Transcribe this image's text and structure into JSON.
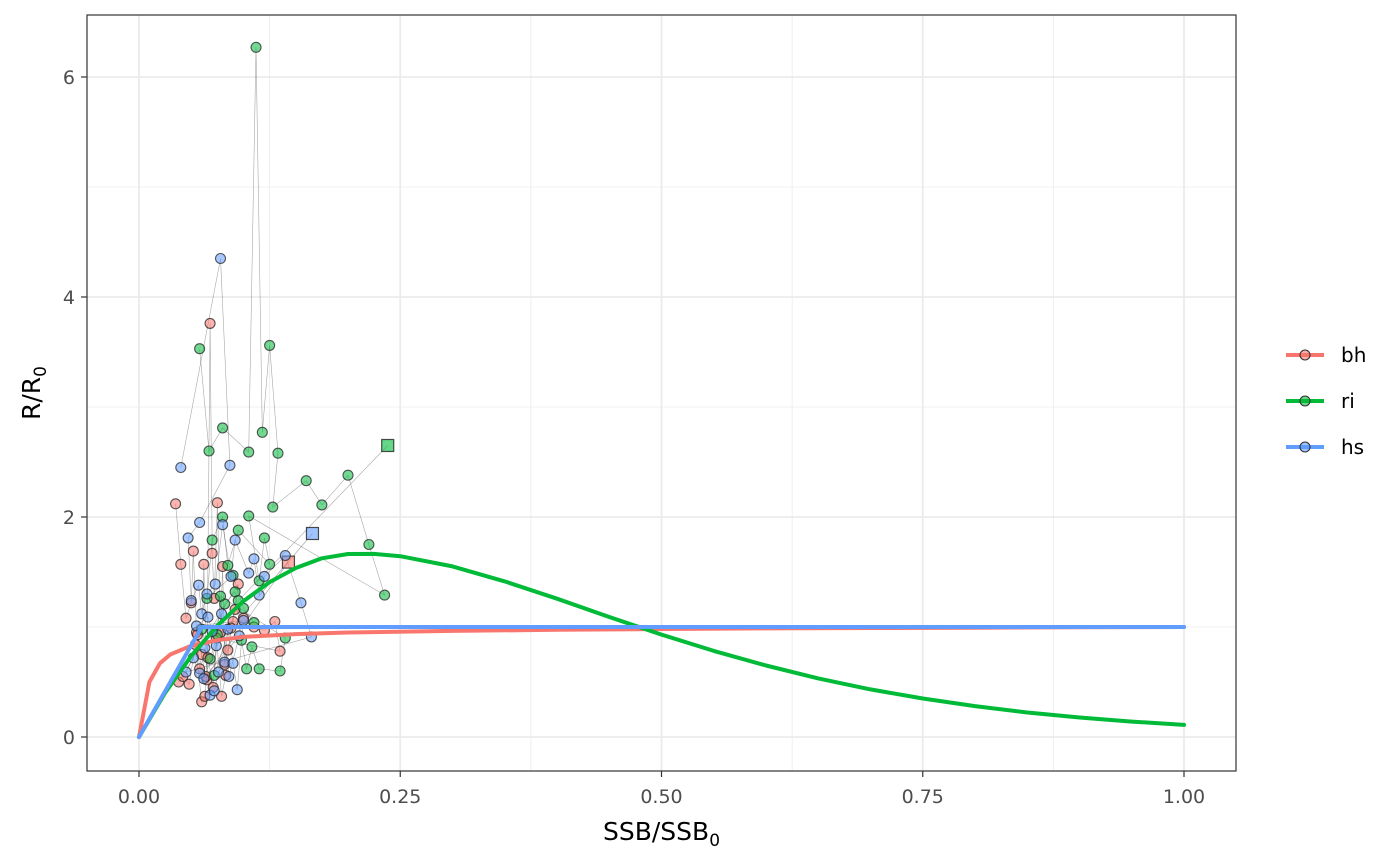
{
  "chart_data": {
    "type": "scatter",
    "xlabel": {
      "main": "SSB/SSB",
      "sub": "0"
    },
    "ylabel": {
      "main": "R/R",
      "sub": "0"
    },
    "xlim": [
      -0.1,
      1.1
    ],
    "ylim": [
      -0.3,
      6.55
    ],
    "x_ticks": [
      0.0,
      0.25,
      0.5,
      0.75,
      1.0
    ],
    "x_tick_labels": [
      "0.00",
      "0.25",
      "0.50",
      "0.75",
      "1.00"
    ],
    "y_ticks": [
      0,
      2,
      4,
      6
    ],
    "y_tick_labels": [
      "0",
      "2",
      "4",
      "6"
    ],
    "grid": true,
    "legend_position": "right",
    "legend": [
      {
        "key": "bh",
        "label": "bh",
        "color": "#F8766D"
      },
      {
        "key": "ri",
        "label": "ri",
        "color": "#00BA38"
      },
      {
        "key": "hs",
        "label": "hs",
        "color": "#619CFF"
      }
    ],
    "series": [
      {
        "key": "bh",
        "color": "#F8766D",
        "curve": {
          "x": [
            0,
            0.01,
            0.02,
            0.03,
            0.05,
            0.075,
            0.1,
            0.15,
            0.2,
            0.3,
            0.4,
            0.5,
            0.6,
            0.7,
            0.8,
            0.9,
            1.0
          ],
          "y": [
            0,
            0.5,
            0.67,
            0.75,
            0.83,
            0.88,
            0.91,
            0.935,
            0.95,
            0.965,
            0.975,
            0.982,
            0.987,
            0.991,
            0.994,
            0.997,
            1.0
          ]
        },
        "points": [
          [
            0.035,
            2.12
          ],
          [
            0.04,
            1.57
          ],
          [
            0.045,
            1.08
          ],
          [
            0.05,
            1.22
          ],
          [
            0.052,
            1.69
          ],
          [
            0.055,
            0.95
          ],
          [
            0.058,
            0.62
          ],
          [
            0.06,
            0.75
          ],
          [
            0.062,
            1.57
          ],
          [
            0.065,
            0.52
          ],
          [
            0.068,
            3.76
          ],
          [
            0.07,
            1.67
          ],
          [
            0.072,
            1.26
          ],
          [
            0.075,
            2.13
          ],
          [
            0.078,
            0.95
          ],
          [
            0.08,
            1.55
          ],
          [
            0.082,
            0.66
          ],
          [
            0.085,
            0.79
          ],
          [
            0.09,
            1.05
          ],
          [
            0.095,
            1.39
          ],
          [
            0.038,
            0.5
          ],
          [
            0.042,
            0.55
          ],
          [
            0.048,
            0.48
          ],
          [
            0.054,
            0.84
          ],
          [
            0.06,
            0.32
          ],
          [
            0.063,
            0.37
          ],
          [
            0.066,
            0.72
          ],
          [
            0.071,
            0.45
          ],
          [
            0.074,
            0.9
          ],
          [
            0.079,
            0.37
          ],
          [
            0.083,
            0.56
          ],
          [
            0.088,
            0.99
          ],
          [
            0.092,
            1.16
          ],
          [
            0.1,
            1.08
          ],
          [
            0.11,
            1.0
          ],
          [
            0.12,
            0.97
          ],
          [
            0.13,
            1.05
          ],
          [
            0.135,
            0.78
          ],
          [
            0.056,
            0.93
          ],
          [
            0.064,
            0.55
          ]
        ],
        "last_point": [
          0.143,
          1.59
        ]
      },
      {
        "key": "ri",
        "color": "#00BA38",
        "curve": {
          "x": [
            0,
            0.025,
            0.05,
            0.075,
            0.1,
            0.125,
            0.15,
            0.175,
            0.2,
            0.225,
            0.25,
            0.3,
            0.35,
            0.4,
            0.45,
            0.5,
            0.55,
            0.6,
            0.65,
            0.7,
            0.75,
            0.8,
            0.85,
            0.9,
            0.95,
            1.0
          ],
          "y": [
            0,
            0.402,
            0.738,
            1.013,
            1.235,
            1.408,
            1.536,
            1.625,
            1.664,
            1.665,
            1.644,
            1.551,
            1.415,
            1.257,
            1.091,
            0.931,
            0.783,
            0.65,
            0.533,
            0.433,
            0.35,
            0.281,
            0.223,
            0.177,
            0.14,
            0.11
          ]
        },
        "points": [
          [
            0.058,
            3.53
          ],
          [
            0.067,
            2.6
          ],
          [
            0.08,
            2.81
          ],
          [
            0.105,
            2.59
          ],
          [
            0.112,
            6.27
          ],
          [
            0.118,
            2.77
          ],
          [
            0.125,
            3.56
          ],
          [
            0.133,
            2.58
          ],
          [
            0.128,
            2.09
          ],
          [
            0.16,
            2.33
          ],
          [
            0.175,
            2.11
          ],
          [
            0.2,
            2.38
          ],
          [
            0.22,
            1.75
          ],
          [
            0.235,
            1.29
          ],
          [
            0.105,
            2.01
          ],
          [
            0.115,
            1.42
          ],
          [
            0.12,
            1.81
          ],
          [
            0.125,
            1.57
          ],
          [
            0.095,
            1.88
          ],
          [
            0.085,
            1.56
          ],
          [
            0.08,
            2.0
          ],
          [
            0.07,
            1.79
          ],
          [
            0.065,
            1.26
          ],
          [
            0.09,
            1.47
          ],
          [
            0.1,
            1.17
          ],
          [
            0.11,
            1.04
          ],
          [
            0.06,
            0.98
          ],
          [
            0.068,
            0.71
          ],
          [
            0.075,
            0.93
          ],
          [
            0.082,
            1.21
          ],
          [
            0.092,
            1.32
          ],
          [
            0.098,
            0.88
          ],
          [
            0.103,
            0.62
          ],
          [
            0.108,
            0.82
          ],
          [
            0.115,
            0.62
          ],
          [
            0.135,
            0.6
          ],
          [
            0.14,
            0.9
          ],
          [
            0.078,
            1.28
          ],
          [
            0.072,
            0.56
          ],
          [
            0.095,
            1.24
          ]
        ],
        "last_point": [
          0.238,
          2.65
        ]
      },
      {
        "key": "hs",
        "color": "#619CFF",
        "curve": {
          "x": [
            0,
            0.06,
            1.0
          ],
          "y": [
            0,
            1.0,
            1.0
          ]
        },
        "points": [
          [
            0.04,
            2.45
          ],
          [
            0.078,
            4.35
          ],
          [
            0.087,
            2.47
          ],
          [
            0.058,
            1.95
          ],
          [
            0.047,
            1.81
          ],
          [
            0.05,
            1.24
          ],
          [
            0.057,
            1.38
          ],
          [
            0.06,
            1.12
          ],
          [
            0.065,
            1.3
          ],
          [
            0.073,
            1.39
          ],
          [
            0.08,
            1.93
          ],
          [
            0.088,
            1.46
          ],
          [
            0.092,
            1.79
          ],
          [
            0.105,
            1.49
          ],
          [
            0.11,
            1.62
          ],
          [
            0.115,
            1.29
          ],
          [
            0.12,
            1.46
          ],
          [
            0.14,
            1.65
          ],
          [
            0.155,
            1.22
          ],
          [
            0.165,
            0.91
          ],
          [
            0.045,
            0.59
          ],
          [
            0.052,
            0.72
          ],
          [
            0.058,
            0.58
          ],
          [
            0.063,
            0.81
          ],
          [
            0.068,
            0.38
          ],
          [
            0.072,
            0.42
          ],
          [
            0.076,
            0.59
          ],
          [
            0.082,
            0.68
          ],
          [
            0.085,
            0.98
          ],
          [
            0.09,
            0.67
          ],
          [
            0.094,
            0.43
          ],
          [
            0.1,
            1.06
          ],
          [
            0.055,
            1.01
          ],
          [
            0.066,
            1.09
          ],
          [
            0.07,
            0.96
          ],
          [
            0.079,
            1.12
          ],
          [
            0.086,
            0.55
          ],
          [
            0.096,
            0.92
          ],
          [
            0.062,
            0.53
          ],
          [
            0.074,
            0.83
          ]
        ],
        "last_point": [
          0.166,
          1.85
        ]
      }
    ]
  }
}
